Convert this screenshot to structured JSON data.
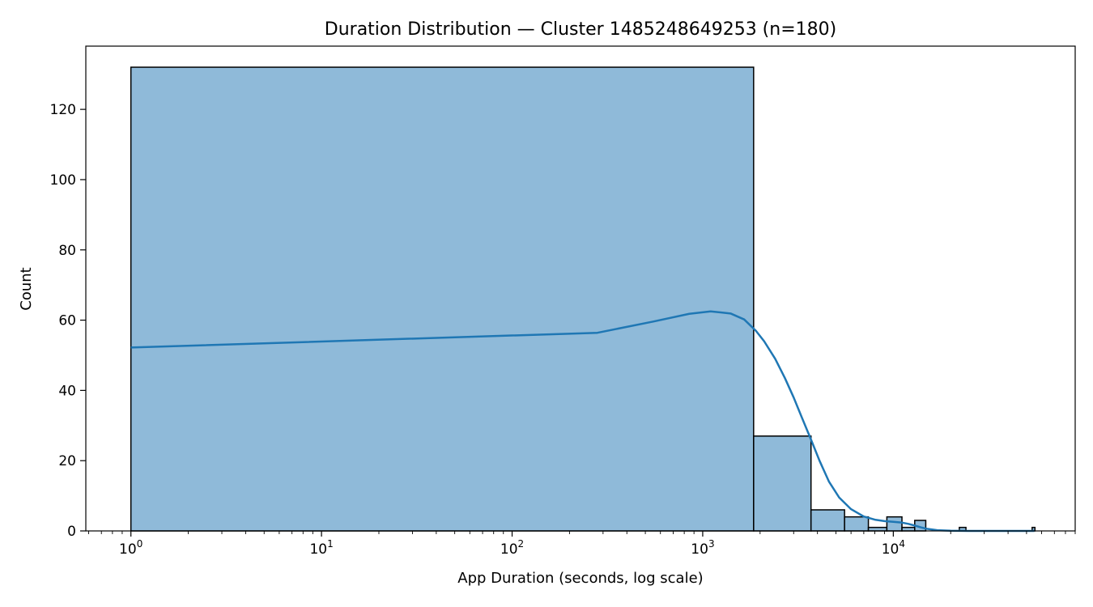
{
  "chart_data": {
    "type": "bar",
    "title": "Duration Distribution — Cluster 1485248649253 (n=180)",
    "xlabel": "App Duration (seconds, log scale)",
    "ylabel": "Count",
    "x_scale": "log",
    "xlim": [
      0.58,
      90000
    ],
    "ylim": [
      0,
      138
    ],
    "grid": false,
    "legend": "none",
    "bar_color": "#8fbad9",
    "bar_edge_color": "#000000",
    "kde_color": "#1f77b4",
    "x_ticks": [
      {
        "base": "10",
        "exp": "0",
        "value": 1
      },
      {
        "base": "10",
        "exp": "1",
        "value": 10
      },
      {
        "base": "10",
        "exp": "2",
        "value": 100
      },
      {
        "base": "10",
        "exp": "3",
        "value": 1000
      },
      {
        "base": "10",
        "exp": "4",
        "value": 10000
      }
    ],
    "y_ticks": [
      0,
      20,
      40,
      60,
      80,
      100,
      120
    ],
    "bins": [
      {
        "x0": 1,
        "x1": 1850,
        "count": 132
      },
      {
        "x0": 1850,
        "x1": 3700,
        "count": 27
      },
      {
        "x0": 3700,
        "x1": 5550,
        "count": 6
      },
      {
        "x0": 5550,
        "x1": 7400,
        "count": 4
      },
      {
        "x0": 7400,
        "x1": 9250,
        "count": 1
      },
      {
        "x0": 9250,
        "x1": 11100,
        "count": 4
      },
      {
        "x0": 11100,
        "x1": 12950,
        "count": 1
      },
      {
        "x0": 12950,
        "x1": 14800,
        "count": 3
      },
      {
        "x0": 22200,
        "x1": 24050,
        "count": 1
      },
      {
        "x0": 53500,
        "x1": 55350,
        "count": 1
      }
    ],
    "kde": {
      "x": [
        1,
        280,
        550,
        850,
        1100,
        1400,
        1650,
        1900,
        2100,
        2400,
        2700,
        3000,
        3300,
        3700,
        4100,
        4600,
        5200,
        6000,
        7000,
        8000,
        9000,
        10000,
        11000,
        12000,
        13000,
        14000,
        15000,
        17000,
        20000,
        25000,
        30000,
        40000,
        55000
      ],
      "y": [
        52.2,
        56.4,
        59.6,
        61.8,
        62.5,
        61.9,
        60.2,
        57.0,
        54.0,
        49.0,
        43.5,
        38.0,
        32.5,
        26.0,
        20.0,
        14.0,
        9.5,
        6.2,
        4.1,
        3.2,
        2.8,
        2.6,
        2.4,
        2.0,
        1.5,
        1.0,
        0.6,
        0.2,
        0.05,
        0.0,
        0.0,
        0.0,
        0.0
      ]
    }
  }
}
